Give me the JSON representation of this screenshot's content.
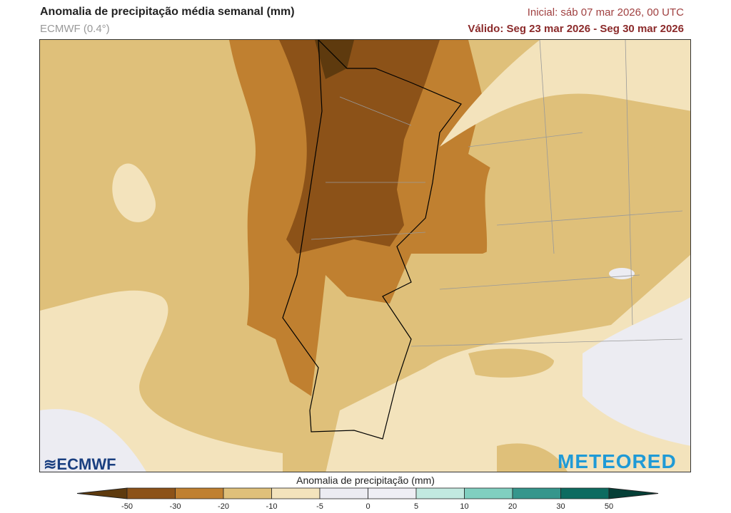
{
  "header": {
    "title": "Anomalia de precipitação média semanal (mm)",
    "model": "ECMWF (0.4°)",
    "initial": "Inicial:  sáb 07 mar 2026, 00 UTC",
    "valid": "Válido: Seg 23 mar 2026 - Seg 30 mar 2026"
  },
  "logos": {
    "left": "ECMWF",
    "right": "METEORED"
  },
  "legend": {
    "title": "Anomalia de precipitação (mm)",
    "ticks": [
      "-50",
      "-30",
      "-20",
      "-10",
      "-5",
      "0",
      "5",
      "10",
      "20",
      "30",
      "50"
    ],
    "colors": [
      "#5e3a0e",
      "#8c5218",
      "#c08030",
      "#dfc07a",
      "#f3e3bc",
      "#ececf2",
      "#eeeef4",
      "#c2e9e0",
      "#80cfc0",
      "#35968c",
      "#0d6b60",
      "#053f37"
    ]
  }
}
